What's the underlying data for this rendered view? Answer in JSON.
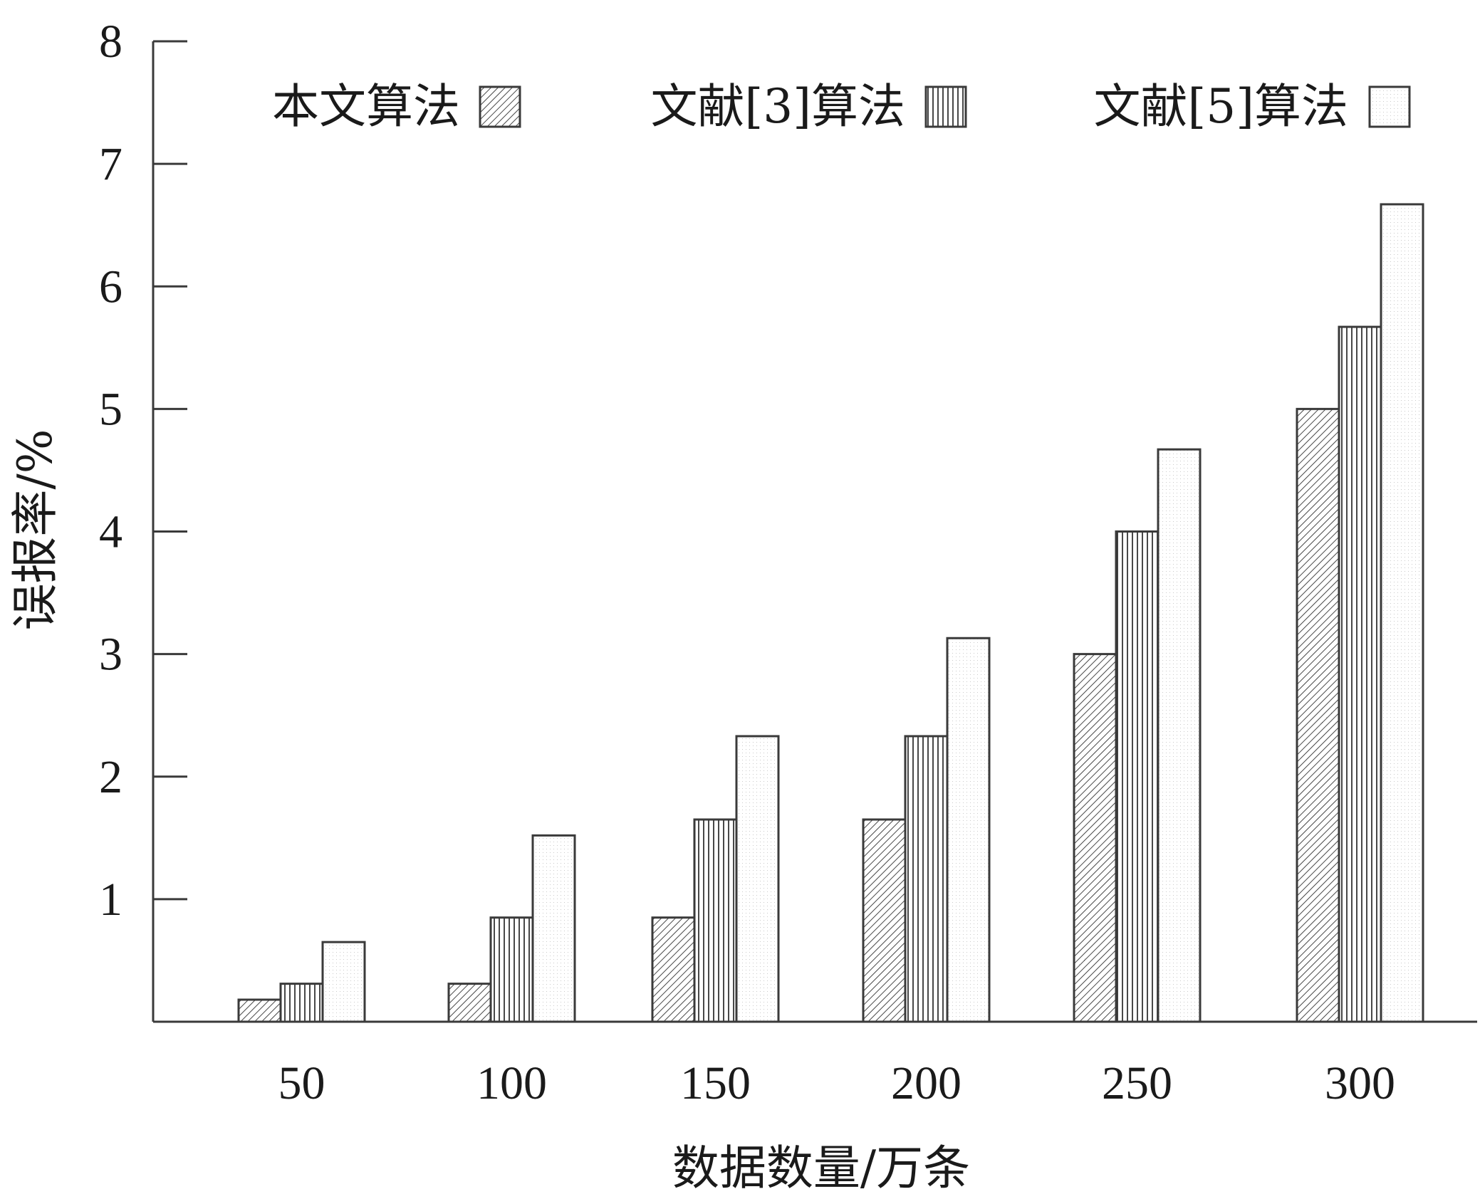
{
  "chart_data": {
    "type": "bar",
    "title": "",
    "xlabel": "数据数量/万条",
    "ylabel": "误报率/%",
    "categories": [
      "50",
      "100",
      "150",
      "200",
      "250",
      "300"
    ],
    "yticks": [
      "1",
      "2",
      "3",
      "4",
      "5",
      "6",
      "7",
      "8"
    ],
    "ylim": [
      0,
      8
    ],
    "grid": false,
    "legend_position": "top",
    "series": [
      {
        "name": "本文算法",
        "pattern": "diagonal-hatch",
        "values": [
          0.18,
          0.31,
          0.85,
          1.65,
          3.0,
          5.0
        ]
      },
      {
        "name": "文献[3]算法",
        "pattern": "vertical-hatch",
        "values": [
          0.31,
          0.85,
          1.65,
          2.33,
          4.0,
          5.67
        ]
      },
      {
        "name": "文献[5]算法",
        "pattern": "dotted-white",
        "values": [
          0.65,
          1.52,
          2.33,
          3.13,
          4.67,
          6.67
        ]
      }
    ]
  },
  "colors": {
    "axis": "#3a3a3a",
    "bar_stroke": "#3a3a3a",
    "bar_fill": "#ffffff"
  }
}
